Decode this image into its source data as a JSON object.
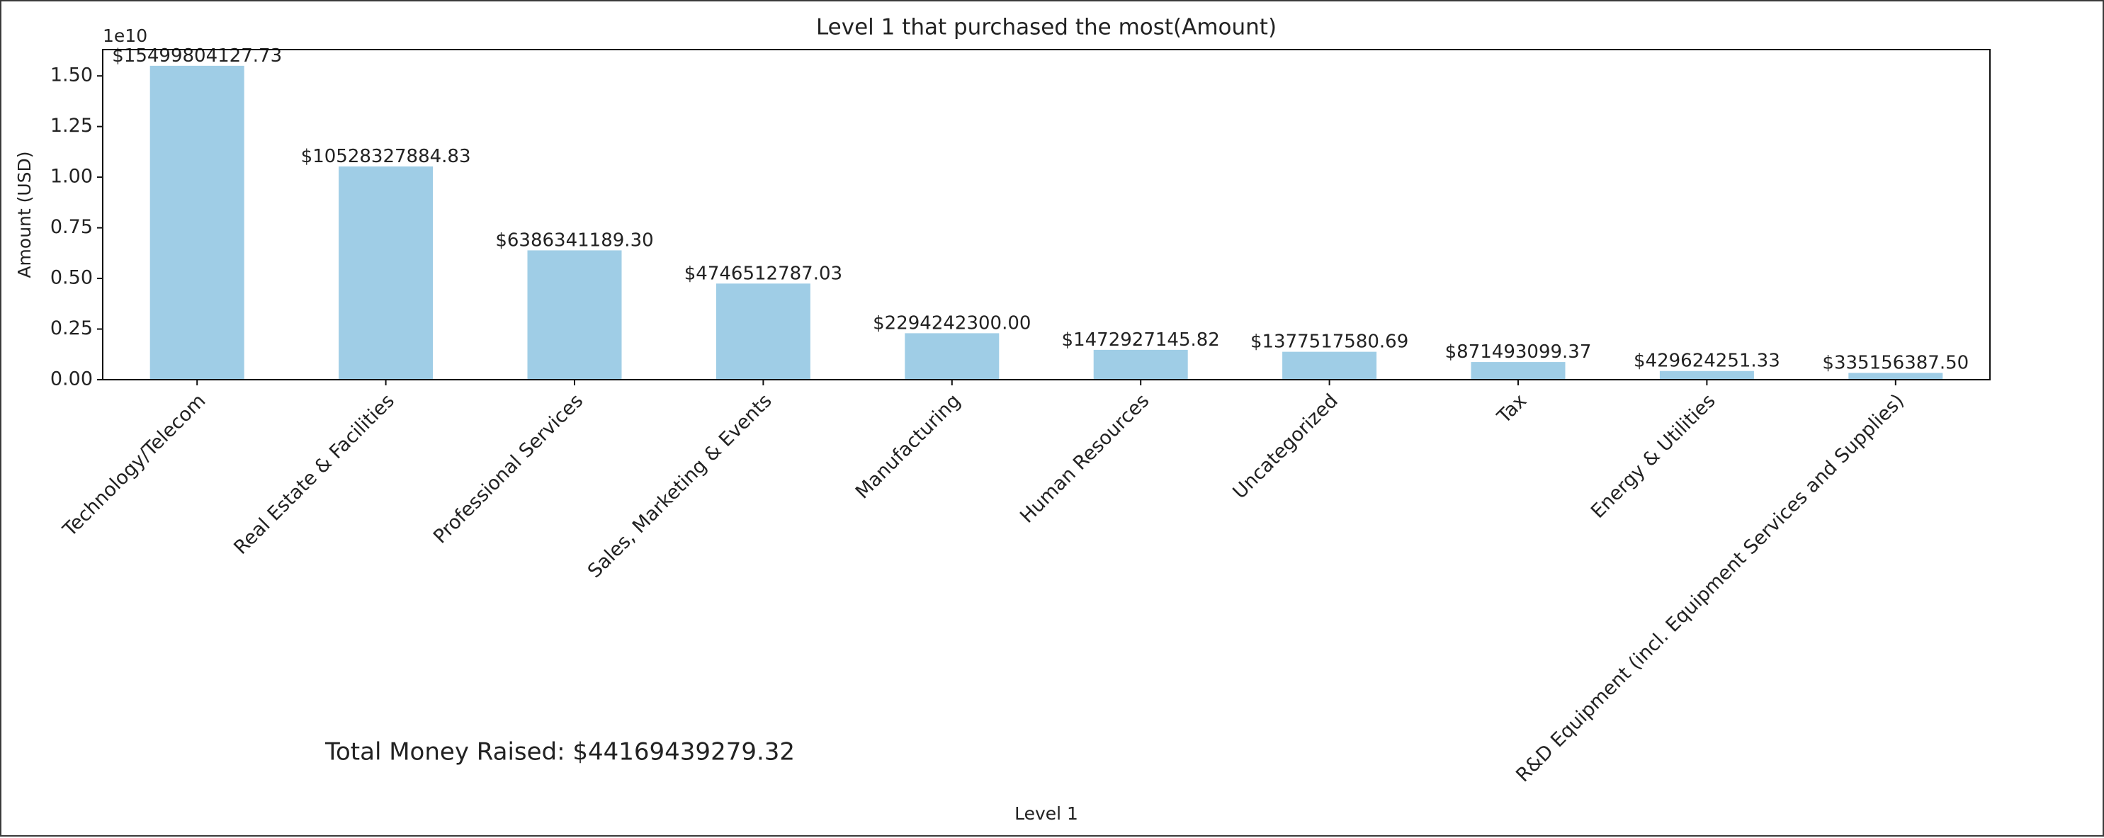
{
  "chart_data": {
    "type": "bar",
    "title": "Level 1 that purchased the most(Amount)",
    "xlabel": "Level 1",
    "ylabel": "Amount (USD)",
    "y_offset_text": "1e10",
    "y_scale": 10000000000,
    "ylim": [
      0,
      1.63
    ],
    "yticks": [
      0.0,
      0.25,
      0.5,
      0.75,
      1.0,
      1.25,
      1.5
    ],
    "ytick_labels": [
      "0.00",
      "0.25",
      "0.50",
      "0.75",
      "1.00",
      "1.25",
      "1.50"
    ],
    "grid": false,
    "bar_color": "#9fcde6",
    "categories": [
      "Technology/Telecom",
      "Real Estate & Facilities",
      "Professional Services",
      "Sales, Marketing & Events",
      "Manufacturing",
      "Human Resources",
      "Uncategorized",
      "Tax",
      "Energy & Utilities",
      "R&D Equipment (incl. Equipment Services and Supplies)"
    ],
    "values": [
      15499804127.73,
      10528327884.83,
      6386341189.3,
      4746512787.03,
      2294242300.0,
      1472927145.82,
      1377517580.69,
      871493099.37,
      429624251.33,
      335156387.5
    ],
    "data_labels": [
      "$15499804127.73",
      "$10528327884.83",
      "$6386341189.30",
      "$4746512787.03",
      "$2294242300.00",
      "$1472927145.82",
      "$1377517580.69",
      "$871493099.37",
      "$429624251.33",
      "$335156387.50"
    ],
    "annotation": "Total Money Raised: $44169439279.32"
  }
}
